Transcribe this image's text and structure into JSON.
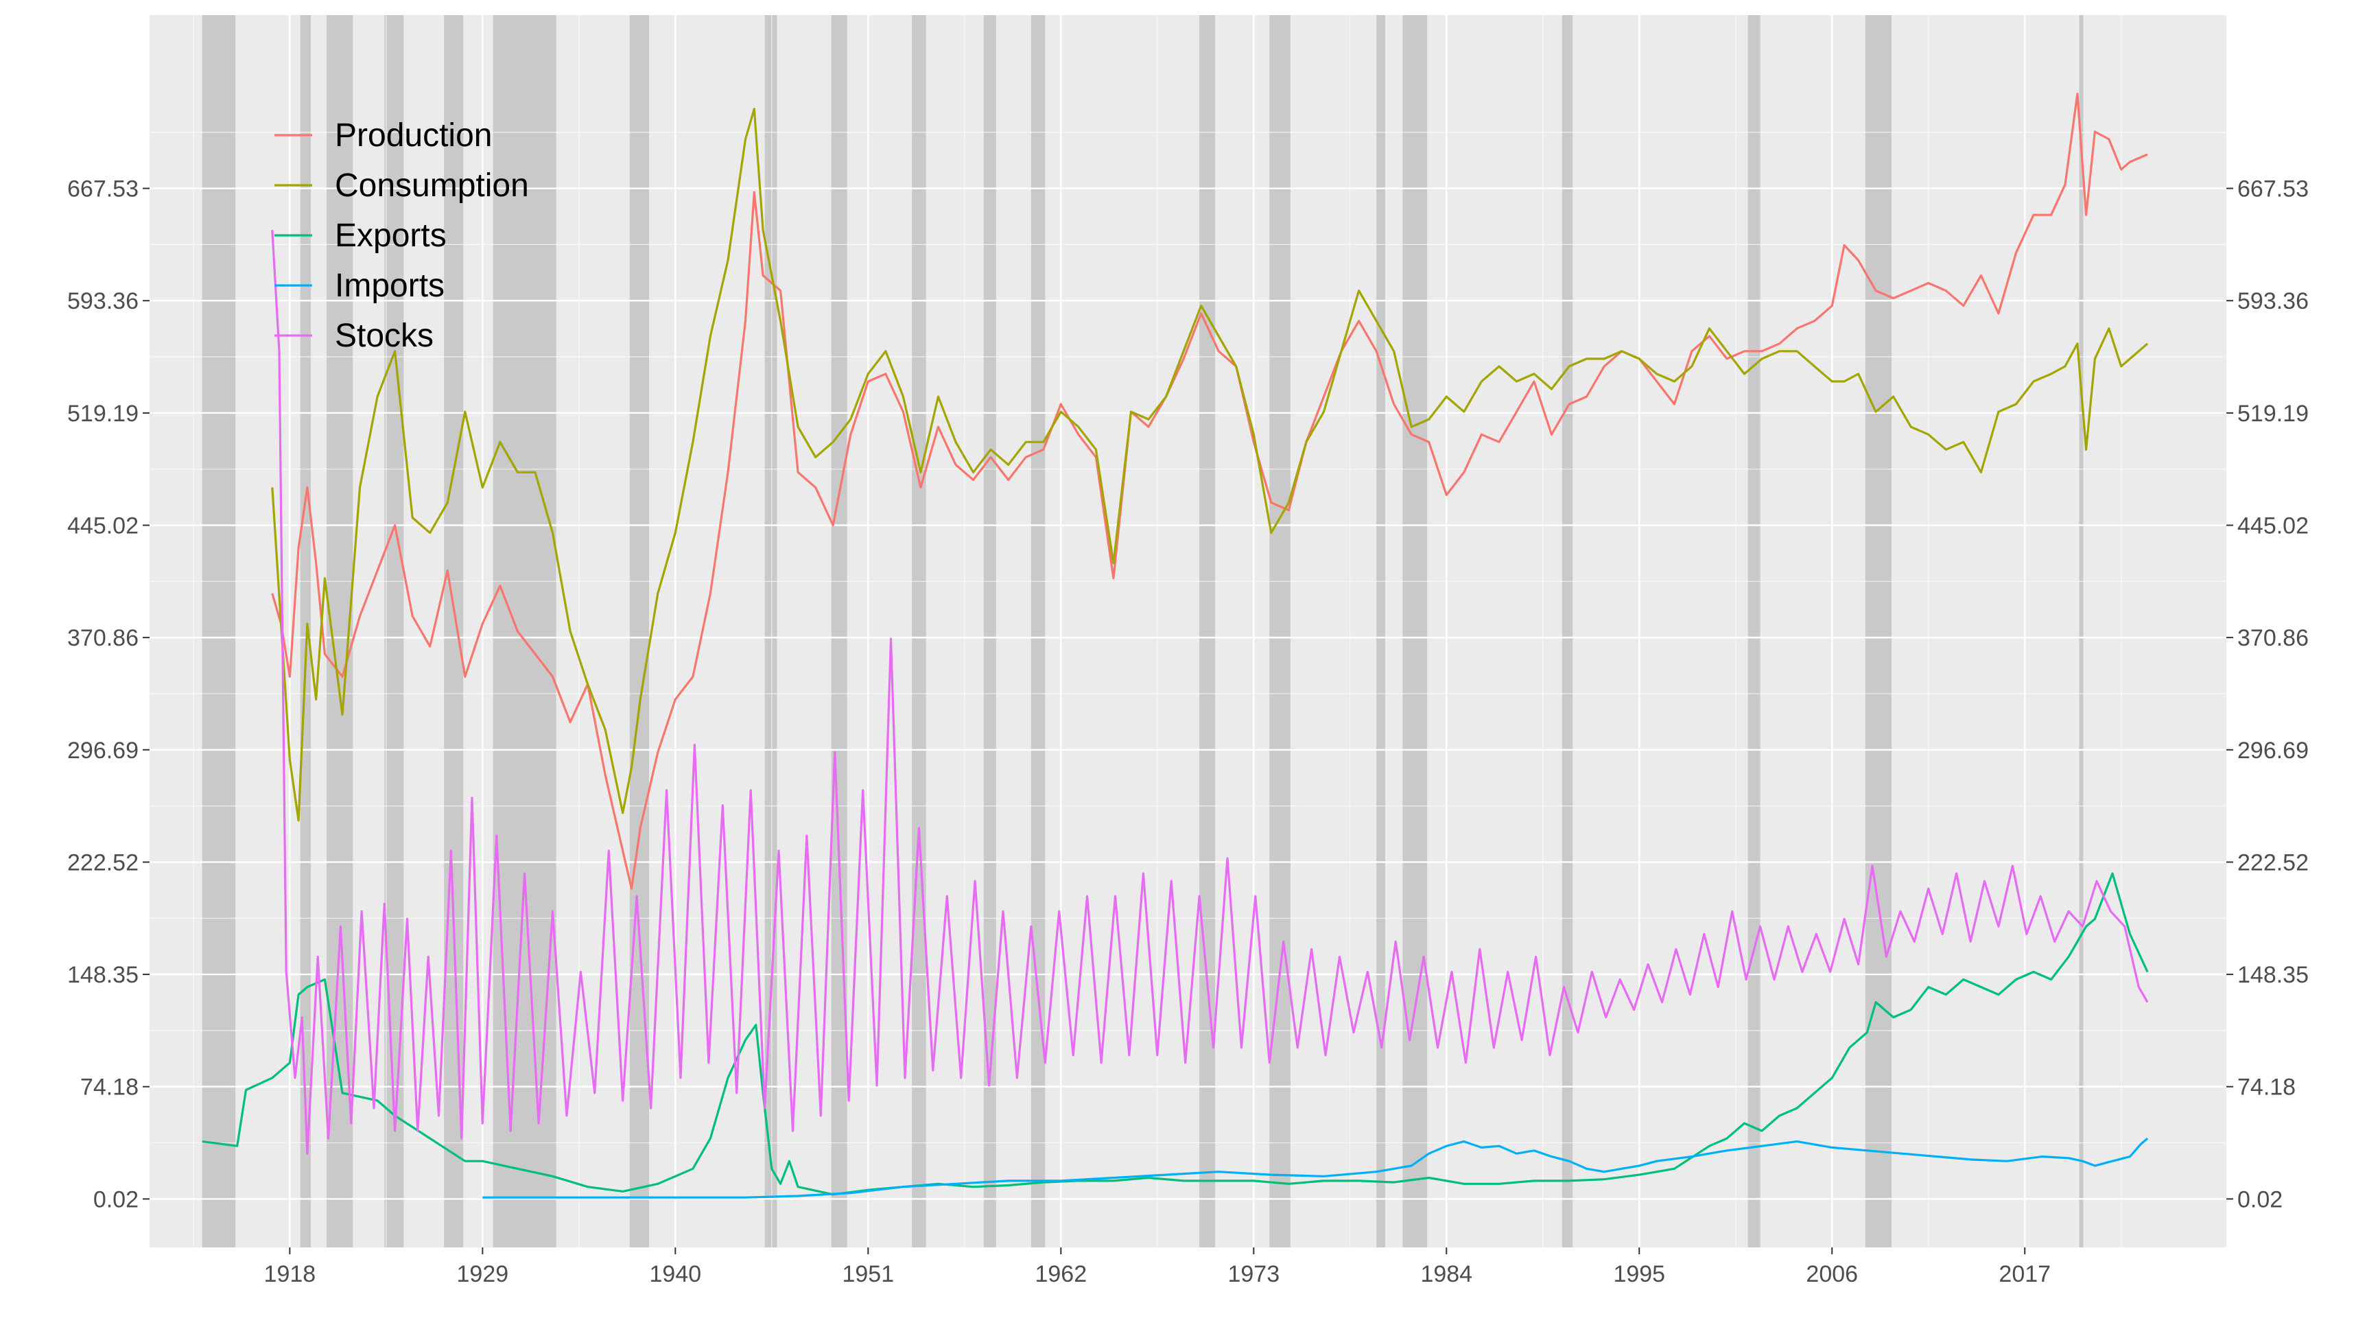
{
  "chart_data": {
    "type": "line",
    "title": "",
    "xlabel": "",
    "ylabel": "",
    "xlim": [
      1910.0,
      2028.5
    ],
    "ylim": [
      -32,
      782
    ],
    "grid": true,
    "legend_position": "top-left",
    "x_ticks": [
      "1918",
      "1929",
      "1940",
      "1951",
      "1962",
      "1973",
      "1984",
      "1995",
      "2006",
      "2017"
    ],
    "y_ticks": [
      "0.02",
      "74.18",
      "148.35",
      "222.52",
      "296.69",
      "370.86",
      "445.02",
      "519.19",
      "593.36",
      "667.53"
    ],
    "recession_bands": [
      [
        1913.0,
        1914.9
      ],
      [
        1918.6,
        1919.2
      ],
      [
        1920.1,
        1921.6
      ],
      [
        1923.4,
        1924.5
      ],
      [
        1926.8,
        1927.9
      ],
      [
        1929.6,
        1933.2
      ],
      [
        1937.4,
        1938.5
      ],
      [
        1945.1,
        1945.8
      ],
      [
        1948.9,
        1949.8
      ],
      [
        1953.5,
        1954.3
      ],
      [
        1957.6,
        1958.3
      ],
      [
        1960.3,
        1961.1
      ],
      [
        1969.9,
        1970.8
      ],
      [
        1973.9,
        1975.1
      ],
      [
        1980.0,
        1980.5
      ],
      [
        1981.5,
        1982.9
      ],
      [
        1990.6,
        1991.2
      ],
      [
        2001.2,
        2001.9
      ],
      [
        2007.9,
        2009.4
      ],
      [
        2020.1,
        2020.3
      ]
    ],
    "series": [
      {
        "name": "Production",
        "color": "#F8766D",
        "x": [
          1917.0,
          1917.5,
          1918.0,
          1918.5,
          1919.0,
          1919.5,
          1920.0,
          1921.0,
          1922.0,
          1923.0,
          1924.0,
          1925.0,
          1926.0,
          1927.0,
          1928.0,
          1929.0,
          1930.0,
          1931.0,
          1932.0,
          1933.0,
          1934.0,
          1935.0,
          1936.0,
          1937.0,
          1937.5,
          1938.0,
          1939.0,
          1940.0,
          1941.0,
          1942.0,
          1943.0,
          1944.0,
          1944.5,
          1945.0,
          1946.0,
          1947.0,
          1948.0,
          1949.0,
          1950.0,
          1951.0,
          1952.0,
          1953.0,
          1954.0,
          1955.0,
          1956.0,
          1957.0,
          1958.0,
          1959.0,
          1960.0,
          1961.0,
          1962.0,
          1963.0,
          1964.0,
          1965.0,
          1966.0,
          1967.0,
          1968.0,
          1969.0,
          1970.0,
          1971.0,
          1972.0,
          1973.0,
          1974.0,
          1975.0,
          1976.0,
          1977.0,
          1978.0,
          1979.0,
          1980.0,
          1981.0,
          1982.0,
          1983.0,
          1984.0,
          1985.0,
          1986.0,
          1987.0,
          1988.0,
          1989.0,
          1990.0,
          1991.0,
          1992.0,
          1993.0,
          1994.0,
          1995.0,
          1996.0,
          1997.0,
          1998.0,
          1999.0,
          2000.0,
          2001.0,
          2002.0,
          2003.0,
          2004.0,
          2005.0,
          2006.0,
          2006.7,
          2007.5,
          2008.5,
          2009.5,
          2010.5,
          2011.5,
          2012.5,
          2013.5,
          2014.5,
          2015.5,
          2016.5,
          2017.5,
          2018.5,
          2019.3,
          2020.0,
          2020.5,
          2021.0,
          2021.8,
          2022.5,
          2023.0,
          2024.0
        ],
        "values": [
          400,
          380,
          345,
          430,
          470,
          420,
          360,
          345,
          385,
          415,
          445,
          385,
          365,
          415,
          345,
          380,
          405,
          375,
          360,
          345,
          315,
          340,
          280,
          230,
          205,
          245,
          295,
          330,
          345,
          400,
          480,
          580,
          665,
          610,
          600,
          480,
          470,
          445,
          505,
          540,
          545,
          520,
          470,
          510,
          485,
          475,
          490,
          475,
          490,
          495,
          525,
          505,
          490,
          410,
          520,
          510,
          530,
          555,
          585,
          560,
          550,
          500,
          460,
          455,
          500,
          530,
          560,
          580,
          560,
          525,
          505,
          500,
          465,
          480,
          505,
          500,
          520,
          540,
          505,
          525,
          530,
          550,
          560,
          555,
          540,
          525,
          560,
          570,
          555,
          560,
          560,
          565,
          575,
          580,
          590,
          630,
          620,
          600,
          595,
          600,
          605,
          600,
          590,
          610,
          585,
          625,
          650,
          650,
          670,
          730,
          650,
          705,
          700,
          680,
          685,
          690
        ]
      },
      {
        "name": "Consumption",
        "color": "#A3A500",
        "x": [
          1917.0,
          1917.5,
          1918.0,
          1918.5,
          1919.0,
          1919.5,
          1920.0,
          1921.0,
          1922.0,
          1923.0,
          1924.0,
          1925.0,
          1926.0,
          1927.0,
          1928.0,
          1929.0,
          1930.0,
          1931.0,
          1932.0,
          1933.0,
          1934.0,
          1935.0,
          1936.0,
          1937.0,
          1937.5,
          1938.0,
          1939.0,
          1940.0,
          1941.0,
          1942.0,
          1943.0,
          1944.0,
          1944.5,
          1945.0,
          1946.0,
          1947.0,
          1948.0,
          1949.0,
          1950.0,
          1951.0,
          1952.0,
          1953.0,
          1954.0,
          1955.0,
          1956.0,
          1957.0,
          1958.0,
          1959.0,
          1960.0,
          1961.0,
          1962.0,
          1963.0,
          1964.0,
          1965.0,
          1966.0,
          1967.0,
          1968.0,
          1969.0,
          1970.0,
          1971.0,
          1972.0,
          1973.0,
          1974.0,
          1975.0,
          1976.0,
          1977.0,
          1978.0,
          1979.0,
          1980.0,
          1981.0,
          1982.0,
          1983.0,
          1984.0,
          1985.0,
          1986.0,
          1987.0,
          1988.0,
          1989.0,
          1990.0,
          1991.0,
          1992.0,
          1993.0,
          1994.0,
          1995.0,
          1996.0,
          1997.0,
          1998.0,
          1999.0,
          2000.0,
          2001.0,
          2002.0,
          2003.0,
          2004.0,
          2005.0,
          2006.0,
          2006.7,
          2007.5,
          2008.5,
          2009.5,
          2010.5,
          2011.5,
          2012.5,
          2013.5,
          2014.5,
          2015.5,
          2016.5,
          2017.5,
          2018.5,
          2019.3,
          2020.0,
          2020.5,
          2021.0,
          2021.8,
          2022.5,
          2023.0,
          2024.0
        ],
        "values": [
          470,
          380,
          290,
          250,
          380,
          330,
          410,
          320,
          470,
          530,
          560,
          450,
          440,
          460,
          520,
          470,
          500,
          480,
          480,
          440,
          375,
          340,
          310,
          255,
          285,
          330,
          400,
          440,
          500,
          570,
          620,
          700,
          720,
          640,
          580,
          510,
          490,
          500,
          515,
          545,
          560,
          530,
          480,
          530,
          500,
          480,
          495,
          485,
          500,
          500,
          520,
          510,
          495,
          420,
          520,
          515,
          530,
          560,
          590,
          570,
          550,
          505,
          440,
          460,
          500,
          520,
          560,
          600,
          580,
          560,
          510,
          515,
          530,
          520,
          540,
          550,
          540,
          545,
          535,
          550,
          555,
          555,
          560,
          555,
          545,
          540,
          550,
          575,
          560,
          545,
          555,
          560,
          560,
          550,
          540,
          540,
          545,
          520,
          530,
          510,
          505,
          495,
          500,
          480,
          520,
          525,
          540,
          545,
          550,
          565,
          495,
          555,
          575,
          550,
          555,
          565
        ]
      },
      {
        "name": "Exports",
        "color": "#00BF7D",
        "x": [
          1913.0,
          1915.0,
          1915.5,
          1917.0,
          1918.0,
          1918.5,
          1919.0,
          1920.0,
          1921.0,
          1923.0,
          1924.0,
          1926.0,
          1928.0,
          1929.0,
          1931.0,
          1933.0,
          1935.0,
          1937.0,
          1939.0,
          1941.0,
          1942.0,
          1943.0,
          1944.0,
          1944.6,
          1945.0,
          1945.5,
          1946.0,
          1946.5,
          1947.0,
          1949.0,
          1951.0,
          1953.0,
          1955.0,
          1957.0,
          1959.0,
          1961.0,
          1963.0,
          1965.0,
          1967.0,
          1969.0,
          1971.0,
          1973.0,
          1975.0,
          1977.0,
          1979.0,
          1981.0,
          1983.0,
          1985.0,
          1987.0,
          1989.0,
          1991.0,
          1993.0,
          1995.0,
          1997.0,
          1999.0,
          2000.0,
          2001.0,
          2002.0,
          2003.0,
          2004.0,
          2005.0,
          2006.0,
          2007.0,
          2008.0,
          2008.5,
          2009.5,
          2010.5,
          2011.5,
          2012.5,
          2013.5,
          2014.5,
          2015.5,
          2016.5,
          2017.5,
          2018.5,
          2019.5,
          2020.0,
          2020.5,
          2021.0,
          2021.5,
          2022.0,
          2022.5,
          2023.0,
          2024.0
        ],
        "values": [
          38,
          35,
          72,
          80,
          90,
          135,
          140,
          145,
          70,
          65,
          55,
          40,
          25,
          25,
          20,
          15,
          8,
          5,
          10,
          20,
          40,
          80,
          105,
          115,
          70,
          20,
          10,
          25,
          8,
          3,
          6,
          8,
          10,
          8,
          9,
          11,
          12,
          12,
          14,
          12,
          12,
          12,
          10,
          12,
          12,
          11,
          14,
          10,
          10,
          12,
          12,
          13,
          16,
          20,
          35,
          40,
          50,
          45,
          55,
          60,
          70,
          80,
          100,
          110,
          130,
          120,
          125,
          140,
          135,
          145,
          140,
          135,
          145,
          150,
          145,
          160,
          170,
          180,
          185,
          200,
          215,
          195,
          175,
          150
        ]
      },
      {
        "name": "Imports",
        "color": "#00B0F6",
        "x": [
          1929.0,
          1932.0,
          1935.0,
          1938.0,
          1941.0,
          1944.0,
          1947.0,
          1950.0,
          1953.0,
          1956.0,
          1959.0,
          1962.0,
          1965.0,
          1968.0,
          1971.0,
          1974.0,
          1977.0,
          1980.0,
          1982.0,
          1983.0,
          1984.0,
          1985.0,
          1986.0,
          1987.0,
          1988.0,
          1989.0,
          1990.0,
          1991.0,
          1992.0,
          1993.0,
          1994.0,
          1995.0,
          1996.0,
          1998.0,
          2000.0,
          2002.0,
          2004.0,
          2006.0,
          2008.0,
          2010.0,
          2012.0,
          2014.0,
          2016.0,
          2018.0,
          2019.5,
          2020.3,
          2021.0,
          2022.0,
          2023.0,
          2023.6,
          2024.0
        ],
        "values": [
          1,
          1,
          1,
          1,
          1,
          1,
          2,
          4,
          8,
          10,
          12,
          12,
          14,
          16,
          18,
          16,
          15,
          18,
          22,
          30,
          35,
          38,
          34,
          35,
          30,
          32,
          28,
          25,
          20,
          18,
          20,
          22,
          25,
          28,
          32,
          35,
          38,
          34,
          32,
          30,
          28,
          26,
          25,
          28,
          27,
          25,
          22,
          25,
          28,
          36,
          40
        ]
      },
      {
        "name": "Stocks",
        "color": "#E76BF3",
        "x": [
          1917.0,
          1917.4,
          1917.8,
          1918.3,
          1918.7,
          1919.0,
          1919.6,
          1920.2,
          1920.9,
          1921.5,
          1922.1,
          1922.8,
          1923.4,
          1924.0,
          1924.7,
          1925.3,
          1925.9,
          1926.5,
          1927.2,
          1927.8,
          1928.4,
          1929.0,
          1929.8,
          1930.6,
          1931.4,
          1932.2,
          1933.0,
          1933.8,
          1934.6,
          1935.4,
          1936.2,
          1937.0,
          1937.8,
          1938.6,
          1939.5,
          1940.3,
          1941.1,
          1941.9,
          1942.7,
          1943.5,
          1944.3,
          1945.1,
          1945.9,
          1946.7,
          1947.5,
          1948.3,
          1949.1,
          1949.9,
          1950.7,
          1951.5,
          1952.3,
          1953.1,
          1953.9,
          1954.7,
          1955.5,
          1956.3,
          1957.1,
          1957.9,
          1958.7,
          1959.5,
          1960.3,
          1961.1,
          1961.9,
          1962.7,
          1963.5,
          1964.3,
          1965.1,
          1965.9,
          1966.7,
          1967.5,
          1968.3,
          1969.1,
          1969.9,
          1970.7,
          1971.5,
          1972.3,
          1973.1,
          1973.9,
          1974.7,
          1975.5,
          1976.3,
          1977.1,
          1977.9,
          1978.7,
          1979.5,
          1980.3,
          1981.1,
          1981.9,
          1982.7,
          1983.5,
          1984.3,
          1985.1,
          1985.9,
          1986.7,
          1987.5,
          1988.3,
          1989.1,
          1989.9,
          1990.7,
          1991.5,
          1992.3,
          1993.1,
          1993.9,
          1994.7,
          1995.5,
          1996.3,
          1997.1,
          1997.9,
          1998.7,
          1999.5,
          2000.3,
          2001.1,
          2001.9,
          2002.7,
          2003.5,
          2004.3,
          2005.1,
          2005.9,
          2006.7,
          2007.5,
          2008.3,
          2009.1,
          2009.9,
          2010.7,
          2011.5,
          2012.3,
          2013.1,
          2013.9,
          2014.7,
          2015.5,
          2016.3,
          2017.1,
          2017.9,
          2018.7,
          2019.5,
          2020.3,
          2021.1,
          2021.9,
          2022.7,
          2023.5,
          2024.0
        ],
        "values": [
          640,
          560,
          150,
          80,
          120,
          30,
          160,
          40,
          180,
          50,
          190,
          60,
          195,
          45,
          185,
          45,
          160,
          55,
          230,
          40,
          265,
          50,
          240,
          45,
          215,
          50,
          190,
          55,
          150,
          70,
          230,
          65,
          200,
          60,
          270,
          80,
          300,
          90,
          260,
          70,
          270,
          60,
          230,
          45,
          240,
          55,
          295,
          65,
          270,
          75,
          370,
          80,
          245,
          85,
          200,
          80,
          210,
          75,
          190,
          80,
          180,
          90,
          190,
          95,
          200,
          90,
          200,
          95,
          215,
          95,
          210,
          90,
          200,
          100,
          225,
          100,
          200,
          90,
          170,
          100,
          165,
          95,
          160,
          110,
          150,
          100,
          170,
          105,
          160,
          100,
          150,
          90,
          165,
          100,
          150,
          105,
          160,
          95,
          140,
          110,
          150,
          120,
          145,
          125,
          155,
          130,
          165,
          135,
          175,
          140,
          190,
          145,
          180,
          145,
          180,
          150,
          175,
          150,
          185,
          155,
          220,
          160,
          190,
          170,
          205,
          175,
          215,
          170,
          210,
          180,
          220,
          175,
          200,
          170,
          190,
          180,
          210,
          190,
          180,
          140,
          130
        ]
      }
    ]
  }
}
